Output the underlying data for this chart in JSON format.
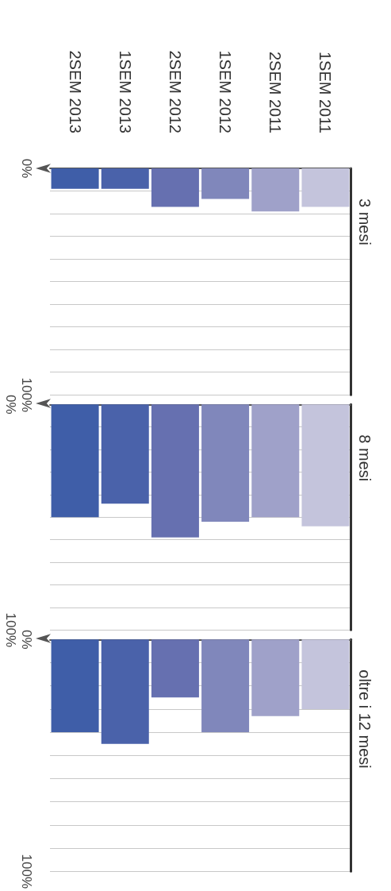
{
  "chart_data": [
    {
      "type": "bar",
      "title": "3 mesi",
      "categories": [
        "2SEM 2013",
        "1SEM 2013",
        "2SEM 2012",
        "1SEM 2012",
        "2SEM 2011",
        "1SEM 2011"
      ],
      "values": [
        9,
        9,
        17,
        13.5,
        19,
        17
      ],
      "colors": [
        "#3f5ea8",
        "#4a62aa",
        "#6670b0",
        "#8087bb",
        "#9fa1c9",
        "#c4c4dc"
      ],
      "ylim": [
        100,
        0
      ],
      "yticks": [
        {
          "value": 0,
          "label": "0%"
        },
        {
          "value": 10,
          "label": null
        },
        {
          "value": 20,
          "label": null
        },
        {
          "value": 30,
          "label": null
        },
        {
          "value": 40,
          "label": null
        },
        {
          "value": 50,
          "label": null
        },
        {
          "value": 60,
          "label": null
        },
        {
          "value": 70,
          "label": null
        },
        {
          "value": 80,
          "label": null
        },
        {
          "value": 90,
          "label": null
        },
        {
          "value": 100,
          "label": "100%"
        }
      ],
      "grid": "y"
    },
    {
      "type": "bar",
      "title": "8 mesi",
      "categories": [
        null,
        null,
        null,
        null,
        null,
        null
      ],
      "values": [
        50,
        44,
        59,
        52,
        50,
        54
      ],
      "colors": [
        "#3f5ea8",
        "#4a62aa",
        "#6670b0",
        "#8087bb",
        "#9fa1c9",
        "#c4c4dc"
      ],
      "ylim": [
        100,
        0
      ],
      "yticks": [
        {
          "value": 0,
          "label": "0%"
        },
        {
          "value": 10,
          "label": null
        },
        {
          "value": 20,
          "label": null
        },
        {
          "value": 30,
          "label": null
        },
        {
          "value": 40,
          "label": null
        },
        {
          "value": 50,
          "label": null
        },
        {
          "value": 60,
          "label": null
        },
        {
          "value": 70,
          "label": null
        },
        {
          "value": 80,
          "label": null
        },
        {
          "value": 90,
          "label": null
        },
        {
          "value": 100,
          "label": "100%"
        }
      ],
      "grid": "y",
      "tick_labels": "y"
    },
    {
      "type": "bar",
      "title": "oltre i 12 mesi",
      "categories": [
        null,
        null,
        null,
        null,
        null,
        null
      ],
      "values": [
        40,
        45,
        25,
        40,
        33,
        30
      ],
      "colors": [
        "#3f5ea8",
        "#4a62aa",
        "#6670b0",
        "#8087bb",
        "#9fa1c9",
        "#c4c4dc"
      ],
      "ylim": [
        100,
        0
      ],
      "yticks": [
        {
          "value": 0,
          "label": "0%"
        },
        {
          "value": 10,
          "label": null
        },
        {
          "value": 20,
          "label": null
        },
        {
          "value": 30,
          "label": null
        },
        {
          "value": 40,
          "label": null
        },
        {
          "value": 50,
          "label": null
        },
        {
          "value": 60,
          "label": null
        },
        {
          "value": 70,
          "label": null
        },
        {
          "value": 80,
          "label": null
        },
        {
          "value": 90,
          "label": null
        },
        {
          "value": 100,
          "label": "100%"
        }
      ],
      "grid": "y",
      "tick_labels": "y"
    }
  ]
}
